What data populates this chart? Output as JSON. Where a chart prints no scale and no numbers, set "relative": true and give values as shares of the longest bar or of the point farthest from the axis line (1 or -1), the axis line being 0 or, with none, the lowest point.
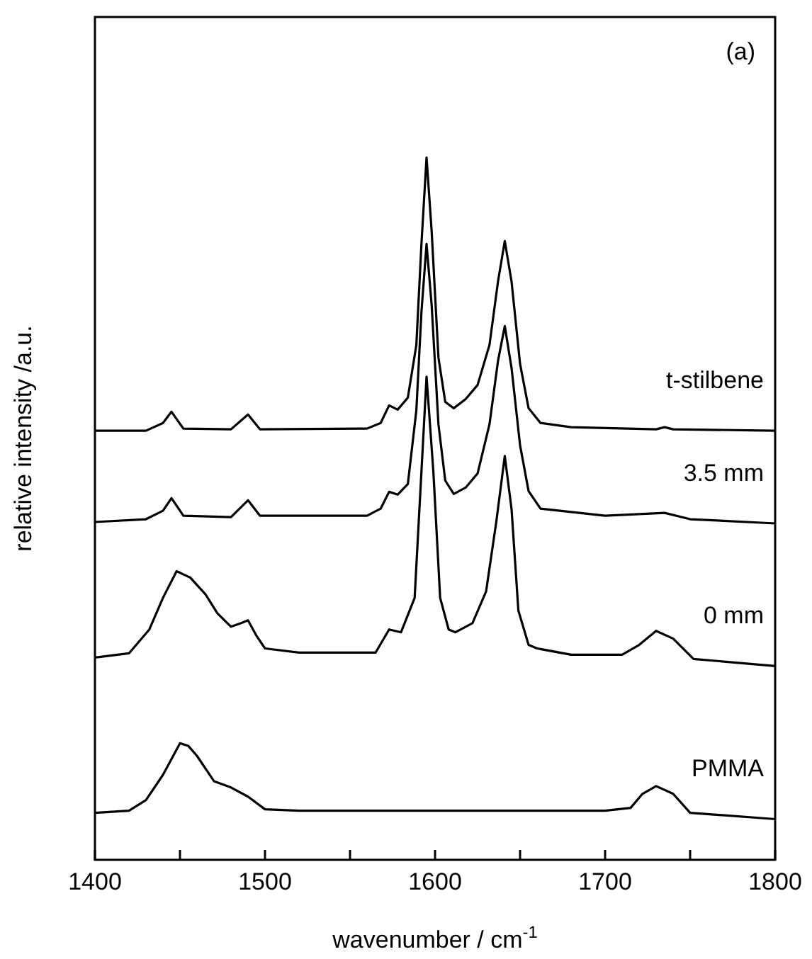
{
  "chart_data": {
    "type": "line",
    "relative": true,
    "xlabel": "wavenumber / cm$^{-1}$",
    "ylabel": "relative intensity /a.u.",
    "annotations": [
      "(a)"
    ],
    "xlim": [
      1400,
      1800
    ],
    "xticks": [
      1400,
      {
        "value": 1450,
        "label": null
      },
      1500,
      {
        "value": 1550,
        "label": null
      },
      1600,
      {
        "value": 1650,
        "label": null
      },
      1700,
      {
        "value": 1750,
        "label": null
      },
      1800
    ],
    "grid": false,
    "legend": false,
    "marker": "none",
    "line_style": "solid",
    "series": [
      {
        "name": "t-stilbene",
        "color": "#000000",
        "x": [
          1400,
          1430,
          1440,
          1445,
          1452,
          1480,
          1490,
          1497,
          1560,
          1568,
          1573,
          1578,
          1584,
          1589,
          1592,
          1595,
          1598,
          1602,
          1606,
          1611,
          1618,
          1625,
          1632,
          1637,
          1641,
          1645,
          1650,
          1655,
          1662,
          1680,
          1730,
          1735,
          1740,
          1800
        ],
        "values": [
          0.611,
          0.611,
          0.622,
          0.638,
          0.614,
          0.613,
          0.634,
          0.613,
          0.614,
          0.622,
          0.647,
          0.641,
          0.658,
          0.733,
          0.877,
          1.0,
          0.895,
          0.715,
          0.652,
          0.643,
          0.656,
          0.676,
          0.733,
          0.823,
          0.881,
          0.823,
          0.706,
          0.643,
          0.622,
          0.616,
          0.613,
          0.616,
          0.613,
          0.611
        ]
      },
      {
        "name": "3.5 mm",
        "color": "#000000",
        "x": [
          1400,
          1430,
          1440,
          1445,
          1452,
          1480,
          1490,
          1497,
          1560,
          1568,
          1573,
          1578,
          1584,
          1589,
          1592,
          1595,
          1598,
          1602,
          1606,
          1611,
          1618,
          1625,
          1632,
          1637,
          1641,
          1645,
          1650,
          1655,
          1662,
          1700,
          1735,
          1750,
          1800
        ],
        "values": [
          0.481,
          0.485,
          0.497,
          0.515,
          0.49,
          0.488,
          0.512,
          0.49,
          0.49,
          0.5,
          0.524,
          0.52,
          0.535,
          0.64,
          0.78,
          0.877,
          0.79,
          0.62,
          0.54,
          0.521,
          0.53,
          0.55,
          0.62,
          0.71,
          0.76,
          0.7,
          0.59,
          0.525,
          0.5,
          0.49,
          0.494,
          0.485,
          0.479
        ]
      },
      {
        "name": "0 mm",
        "color": "#000000",
        "x": [
          1400,
          1420,
          1432,
          1440,
          1448,
          1456,
          1465,
          1472,
          1480,
          1486,
          1490,
          1495,
          1500,
          1520,
          1565,
          1573,
          1580,
          1588,
          1592,
          1595,
          1599,
          1603,
          1608,
          1612,
          1622,
          1630,
          1636,
          1641,
          1645,
          1649,
          1655,
          1660,
          1680,
          1710,
          1720,
          1730,
          1740,
          1752,
          1800
        ],
        "values": [
          0.288,
          0.294,
          0.328,
          0.373,
          0.411,
          0.402,
          0.378,
          0.351,
          0.332,
          0.337,
          0.341,
          0.319,
          0.301,
          0.295,
          0.295,
          0.328,
          0.324,
          0.373,
          0.553,
          0.688,
          0.553,
          0.373,
          0.328,
          0.324,
          0.337,
          0.382,
          0.481,
          0.575,
          0.499,
          0.355,
          0.306,
          0.301,
          0.292,
          0.292,
          0.306,
          0.326,
          0.315,
          0.286,
          0.276
        ]
      },
      {
        "name": "PMMA",
        "color": "#000000",
        "x": [
          1400,
          1420,
          1430,
          1440,
          1450,
          1455,
          1460,
          1470,
          1480,
          1490,
          1500,
          1520,
          1700,
          1715,
          1722,
          1730,
          1740,
          1750,
          1800
        ],
        "values": [
          0.067,
          0.07,
          0.085,
          0.121,
          0.166,
          0.162,
          0.148,
          0.112,
          0.103,
          0.09,
          0.072,
          0.07,
          0.07,
          0.074,
          0.094,
          0.105,
          0.094,
          0.067,
          0.058
        ]
      }
    ]
  }
}
